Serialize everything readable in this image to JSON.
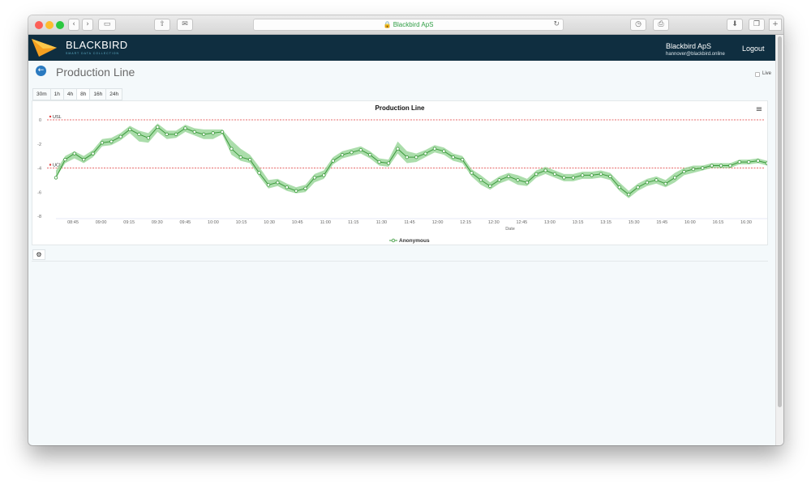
{
  "browser": {
    "address": "Blackbird ApS",
    "lock_icon": "lock-icon",
    "colors": {
      "close": "#fc5f57",
      "minimize": "#fdbc2e",
      "zoom": "#2bc840"
    }
  },
  "navbar": {
    "brand": "BLACKBIRD",
    "tagline": "SMART DATA COLLECTION",
    "account_name": "Blackbird ApS",
    "account_email": "hannover@blackbird.online",
    "logout": "Logout",
    "background": "#0f2e40"
  },
  "page": {
    "title": "Production Line",
    "live_label": "Live",
    "live_checked": false,
    "ranges": [
      "30m",
      "1h",
      "4h",
      "8h",
      "16h",
      "24h"
    ],
    "selected_range": "8h"
  },
  "chart_data": {
    "type": "line",
    "title": "Production Line",
    "xlabel": "Date",
    "ylabel": "",
    "ylim": [
      -8,
      0
    ],
    "yticks": [
      0,
      -2,
      -4,
      -6,
      -8
    ],
    "x_tick_labels": [
      "08:45",
      "09:00",
      "09:15",
      "09:30",
      "09:45",
      "10:00",
      "10:15",
      "10:30",
      "10:45",
      "11:00",
      "11:15",
      "11:30",
      "11:45",
      "12:00",
      "12:15",
      "12:30",
      "12:45",
      "13:00",
      "13:15",
      "13:15",
      "15:30",
      "15:45",
      "16:00",
      "16:15",
      "16:30"
    ],
    "reference_lines": [
      {
        "label": "USL",
        "value": 0,
        "color": "#e03a3a"
      },
      {
        "label": "UCL",
        "value": -4,
        "color": "#e03a3a"
      }
    ],
    "series": [
      {
        "name": "Anonymous",
        "color": "#3c9a3c",
        "band_color": "#8fd18f",
        "values": [
          -4.8,
          -3.3,
          -2.8,
          -3.3,
          -2.8,
          -1.9,
          -1.8,
          -1.4,
          -0.8,
          -1.2,
          -1.5,
          -0.6,
          -1.2,
          -1.2,
          -0.7,
          -1.0,
          -1.2,
          -1.1,
          -1.0,
          -2.4,
          -3.1,
          -3.3,
          -4.4,
          -5.4,
          -5.2,
          -5.6,
          -5.9,
          -5.7,
          -4.8,
          -4.6,
          -3.4,
          -2.9,
          -2.7,
          -2.5,
          -2.9,
          -3.5,
          -3.6,
          -2.4,
          -3.1,
          -3.1,
          -2.8,
          -2.4,
          -2.6,
          -3.1,
          -3.3,
          -4.4,
          -5.0,
          -5.5,
          -5.0,
          -4.7,
          -5.0,
          -5.2,
          -4.5,
          -4.2,
          -4.5,
          -4.8,
          -4.8,
          -4.6,
          -4.6,
          -4.5,
          -4.7,
          -5.6,
          -6.2,
          -5.6,
          -5.2,
          -5.0,
          -5.3,
          -4.8,
          -4.3,
          -4.1,
          -4.0,
          -3.8,
          -3.8,
          -3.8,
          -3.5,
          -3.5,
          -3.4,
          -3.6
        ],
        "band": [
          [
            -4.8,
            -4.2
          ],
          [
            -3.6,
            -3.0
          ],
          [
            -3.2,
            -2.6
          ],
          [
            -3.6,
            -3.0
          ],
          [
            -3.1,
            -2.5
          ],
          [
            -2.2,
            -1.6
          ],
          [
            -2.1,
            -1.5
          ],
          [
            -1.7,
            -1.1
          ],
          [
            -1.1,
            -0.5
          ],
          [
            -1.8,
            -0.9
          ],
          [
            -1.9,
            -1.1
          ],
          [
            -1.0,
            -0.3
          ],
          [
            -1.6,
            -0.9
          ],
          [
            -1.5,
            -0.9
          ],
          [
            -1.0,
            -0.4
          ],
          [
            -1.3,
            -0.7
          ],
          [
            -1.6,
            -0.8
          ],
          [
            -1.6,
            -0.8
          ],
          [
            -1.2,
            -0.8
          ],
          [
            -2.9,
            -1.7
          ],
          [
            -3.4,
            -2.4
          ],
          [
            -3.6,
            -2.9
          ],
          [
            -4.7,
            -3.9
          ],
          [
            -5.7,
            -5.0
          ],
          [
            -5.5,
            -4.9
          ],
          [
            -5.9,
            -5.3
          ],
          [
            -6.1,
            -5.6
          ],
          [
            -6.0,
            -5.4
          ],
          [
            -5.2,
            -4.5
          ],
          [
            -4.9,
            -4.2
          ],
          [
            -3.7,
            -3.1
          ],
          [
            -3.2,
            -2.6
          ],
          [
            -3.0,
            -2.4
          ],
          [
            -2.8,
            -2.2
          ],
          [
            -3.2,
            -2.6
          ],
          [
            -3.8,
            -3.2
          ],
          [
            -3.9,
            -3.3
          ],
          [
            -2.8,
            -1.8
          ],
          [
            -3.6,
            -2.6
          ],
          [
            -3.5,
            -2.8
          ],
          [
            -3.1,
            -2.5
          ],
          [
            -2.7,
            -2.1
          ],
          [
            -2.9,
            -2.3
          ],
          [
            -3.4,
            -2.8
          ],
          [
            -3.6,
            -3.0
          ],
          [
            -4.7,
            -4.1
          ],
          [
            -5.4,
            -4.6
          ],
          [
            -5.8,
            -5.2
          ],
          [
            -5.3,
            -4.7
          ],
          [
            -5.0,
            -4.4
          ],
          [
            -5.4,
            -4.6
          ],
          [
            -5.5,
            -4.9
          ],
          [
            -4.8,
            -4.2
          ],
          [
            -4.5,
            -3.9
          ],
          [
            -4.8,
            -4.2
          ],
          [
            -5.1,
            -4.5
          ],
          [
            -5.1,
            -4.5
          ],
          [
            -4.9,
            -4.3
          ],
          [
            -4.9,
            -4.3
          ],
          [
            -4.8,
            -4.2
          ],
          [
            -5.0,
            -4.4
          ],
          [
            -5.9,
            -5.2
          ],
          [
            -6.5,
            -5.9
          ],
          [
            -5.9,
            -5.3
          ],
          [
            -5.5,
            -4.9
          ],
          [
            -5.3,
            -4.7
          ],
          [
            -5.6,
            -5.0
          ],
          [
            -5.2,
            -4.4
          ],
          [
            -4.6,
            -4.0
          ],
          [
            -4.4,
            -3.8
          ],
          [
            -4.2,
            -3.8
          ],
          [
            -4.0,
            -3.6
          ],
          [
            -4.0,
            -3.6
          ],
          [
            -4.0,
            -3.6
          ],
          [
            -3.7,
            -3.3
          ],
          [
            -3.7,
            -3.3
          ],
          [
            -3.6,
            -3.2
          ],
          [
            -3.8,
            -3.4
          ]
        ]
      }
    ],
    "legend": {
      "position": "bottom-center",
      "entries": [
        "Anonymous"
      ]
    },
    "menu_icon": "hamburger-menu-icon",
    "grid": false
  },
  "footer_panel": {
    "settings_icon": "gear-icon"
  }
}
